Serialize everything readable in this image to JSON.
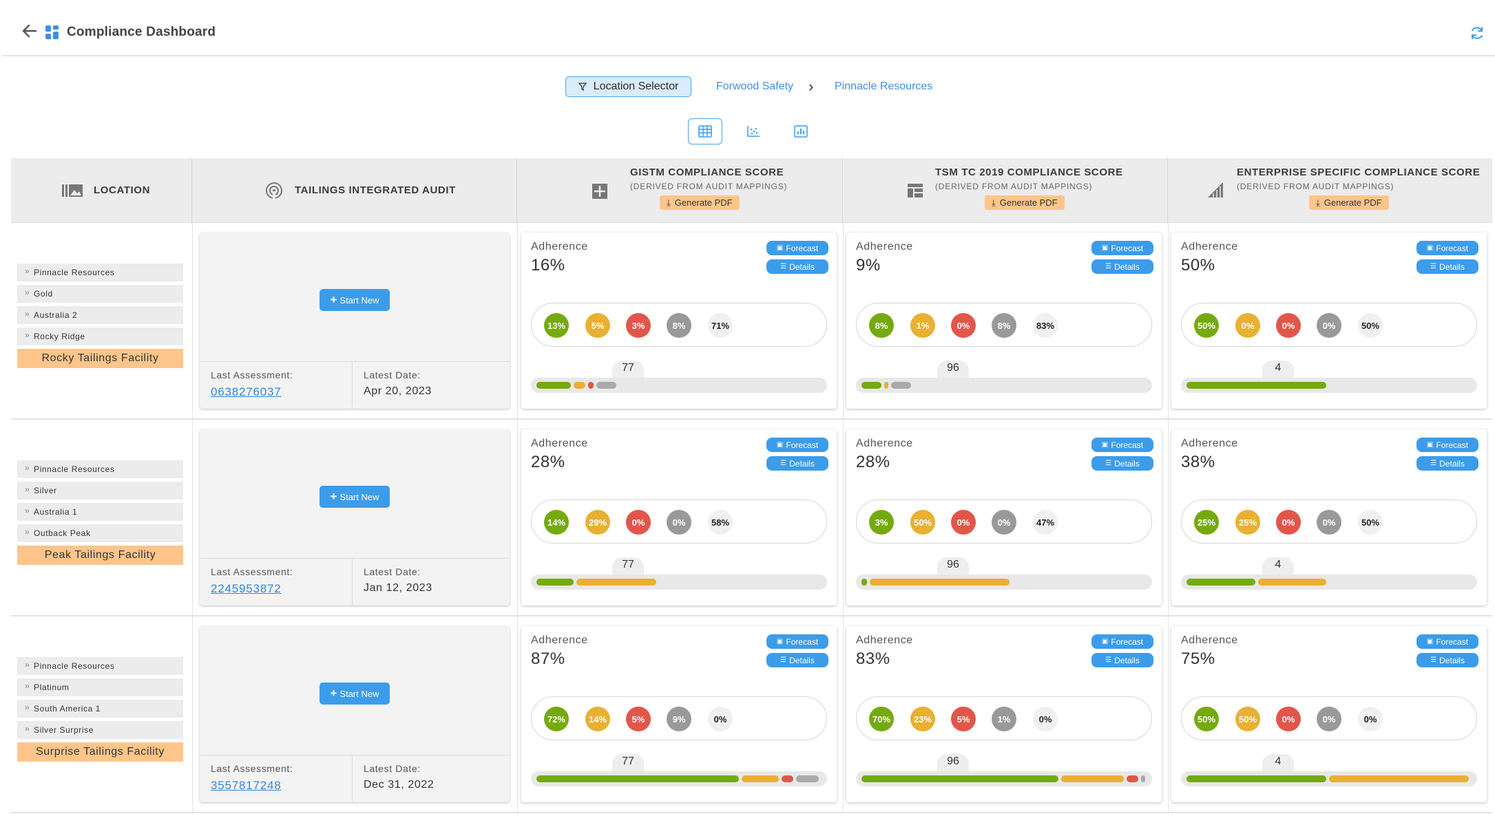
{
  "header": {
    "title": "Compliance Dashboard"
  },
  "breadcrumb": {
    "selector_label": "Location Selector",
    "crumbs": [
      "Forwood Safety",
      "Pinnacle Resources"
    ]
  },
  "table": {
    "columns": {
      "location": "LOCATION",
      "audit": "TAILINGS INTEGRATED AUDIT",
      "gistm": "GISTM COMPLIANCE SCORE",
      "tsm": "TSM TC 2019 COMPLIANCE SCORE",
      "enterprise": "ENTERPRISE SPECIFIC COMPLIANCE SCORE",
      "derived": "(DERIVED FROM AUDIT MAPPINGS)",
      "generate_pdf": "Generate PDF"
    },
    "labels": {
      "adherence": "Adherence",
      "forecast": "Forecast",
      "details": "Details",
      "start_new": "Start New",
      "last_assessment": "Last Assessment:",
      "latest_date": "Latest Date:"
    },
    "rows": [
      {
        "path": [
          "Pinnacle Resources",
          "Gold",
          "Australia 2",
          "Rocky Ridge"
        ],
        "facility": "Rocky Tailings Facility",
        "assessment_id": "0638276037",
        "latest_date": "Apr 20, 2023",
        "scores": [
          {
            "adherence": "16%",
            "breakdown": [
              "13%",
              "5%",
              "3%",
              "8%",
              "71%"
            ],
            "count": "77",
            "bar": [
              0.13,
              0.05,
              0.03,
              0.08
            ]
          },
          {
            "adherence": "9%",
            "breakdown": [
              "8%",
              "1%",
              "0%",
              "8%",
              "83%"
            ],
            "count": "96",
            "bar": [
              0.08,
              0.01,
              0.0,
              0.08
            ]
          },
          {
            "adherence": "50%",
            "breakdown": [
              "50%",
              "0%",
              "0%",
              "0%",
              "50%"
            ],
            "count": "4",
            "bar": [
              0.5,
              0.0,
              0.0,
              0.0
            ]
          }
        ]
      },
      {
        "path": [
          "Pinnacle Resources",
          "Silver",
          "Australia 1",
          "Outback Peak"
        ],
        "facility": "Peak Tailings Facility",
        "assessment_id": "2245953872",
        "latest_date": "Jan 12, 2023",
        "scores": [
          {
            "adherence": "28%",
            "breakdown": [
              "14%",
              "29%",
              "0%",
              "0%",
              "58%"
            ],
            "count": "77",
            "bar": [
              0.14,
              0.29,
              0.0,
              0.0
            ]
          },
          {
            "adherence": "28%",
            "breakdown": [
              "3%",
              "50%",
              "0%",
              "0%",
              "47%"
            ],
            "count": "96",
            "bar": [
              0.03,
              0.5,
              0.0,
              0.0
            ]
          },
          {
            "adherence": "38%",
            "breakdown": [
              "25%",
              "25%",
              "0%",
              "0%",
              "50%"
            ],
            "count": "4",
            "bar": [
              0.25,
              0.25,
              0.0,
              0.0
            ]
          }
        ]
      },
      {
        "path": [
          "Pinnacle Resources",
          "Platinum",
          "South America 1",
          "Silver Surprise"
        ],
        "facility": "Surprise Tailings Facility",
        "assessment_id": "3557817248",
        "latest_date": "Dec 31, 2022",
        "scores": [
          {
            "adherence": "87%",
            "breakdown": [
              "72%",
              "14%",
              "5%",
              "9%",
              "0%"
            ],
            "count": "77",
            "bar": [
              0.72,
              0.14,
              0.05,
              0.09
            ]
          },
          {
            "adherence": "83%",
            "breakdown": [
              "70%",
              "23%",
              "5%",
              "1%",
              "0%"
            ],
            "count": "96",
            "bar": [
              0.7,
              0.23,
              0.05,
              0.01
            ]
          },
          {
            "adherence": "75%",
            "breakdown": [
              "50%",
              "50%",
              "0%",
              "0%",
              "0%"
            ],
            "count": "4",
            "bar": [
              0.5,
              0.5,
              0.0,
              0.0
            ]
          }
        ]
      }
    ]
  },
  "colors": {
    "accent": "#3c9cea",
    "pdf_button": "#ffc58a",
    "facility": "#ffc58a",
    "green": "#74aa0e",
    "orange": "#e9b031",
    "red": "#e2564a",
    "grey": "#999999"
  },
  "icons": {
    "back": "arrow-left-icon",
    "app": "dashboard-grid-icon",
    "refresh": "refresh-icon",
    "filter": "filter-icon",
    "table_view": "table-view-icon",
    "scatter_view": "scatter-view-icon",
    "bar_view": "bar-chart-view-icon",
    "location": "location-image-icon",
    "audit": "audit-signal-icon",
    "gistm": "gistm-puzzle-icon",
    "tsm": "tsm-layout-icon",
    "enterprise": "enterprise-ramp-icon",
    "download": "download-icon",
    "forecast": "forecast-icon",
    "details": "details-icon",
    "plus": "plus-icon"
  }
}
